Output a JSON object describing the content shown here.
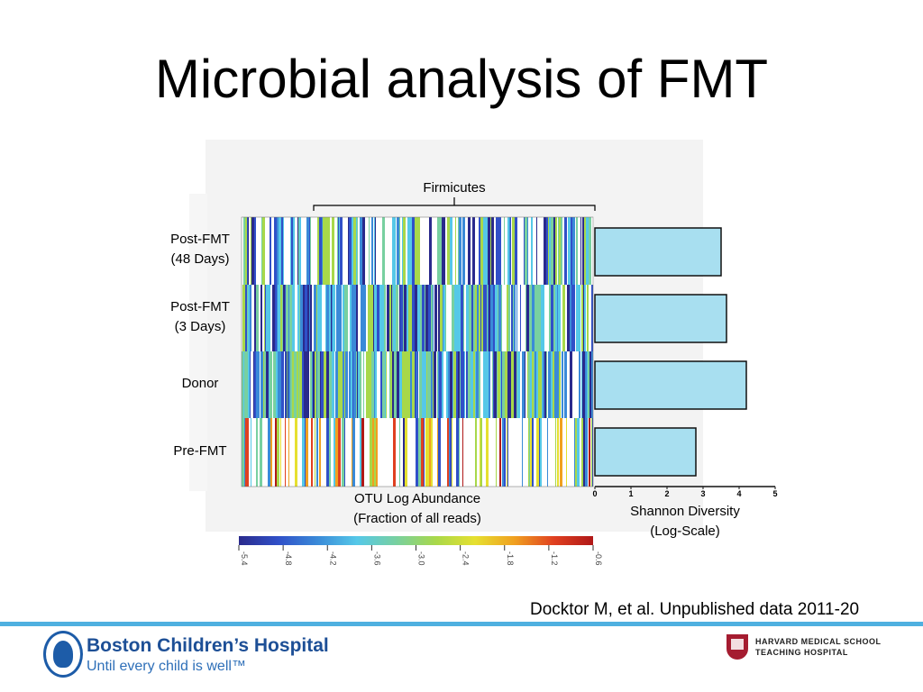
{
  "slide": {
    "title": "Microbial analysis of FMT",
    "citation": "Docktor M, et al. Unpublished data 2011-20"
  },
  "figure": {
    "bracket_label": "Firmicutes",
    "rows": [
      {
        "line1": "Post-FMT",
        "line2": "(48 Days)"
      },
      {
        "line1": "Post-FMT",
        "line2": "(3 Days)"
      },
      {
        "line1": "Donor",
        "line2": ""
      },
      {
        "line1": "Pre-FMT",
        "line2": ""
      }
    ],
    "heatmap_label_line1": "OTU Log Abundance",
    "heatmap_label_line2": "(Fraction of all reads)",
    "colorbar_ticks": [
      "-5.4",
      "-4.8",
      "-4.2",
      "-3.6",
      "-3.0",
      "-2.4",
      "-1.8",
      "-1.2",
      "-0.6"
    ],
    "colorbar_colors": [
      "#2a2a8c",
      "#3050c8",
      "#3a8ad8",
      "#55c8e8",
      "#78d0a0",
      "#a8d84a",
      "#e6e030",
      "#f0a020",
      "#e04020",
      "#b01818"
    ],
    "bar_axis_label_line1": "Shannon Diversity",
    "bar_axis_label_line2": "(Log-Scale)"
  },
  "chart_data": {
    "type": "bar",
    "orientation": "horizontal",
    "categories": [
      "Post-FMT (48 Days)",
      "Post-FMT (3 Days)",
      "Donor",
      "Pre-FMT"
    ],
    "values": [
      3.5,
      3.65,
      4.2,
      2.8
    ],
    "xlim": [
      0,
      5
    ],
    "x_ticks": [
      "0",
      "1",
      "2",
      "3",
      "4",
      "5"
    ],
    "bar_color": "#a8dff0",
    "xlabel": "Shannon Diversity (Log-Scale)"
  },
  "footer": {
    "bch_name": "Boston Children’s Hospital",
    "bch_tagline": "Until every child is well™",
    "hms_line1": "HARVARD MEDICAL SCHOOL",
    "hms_line2": "TEACHING HOSPITAL"
  }
}
